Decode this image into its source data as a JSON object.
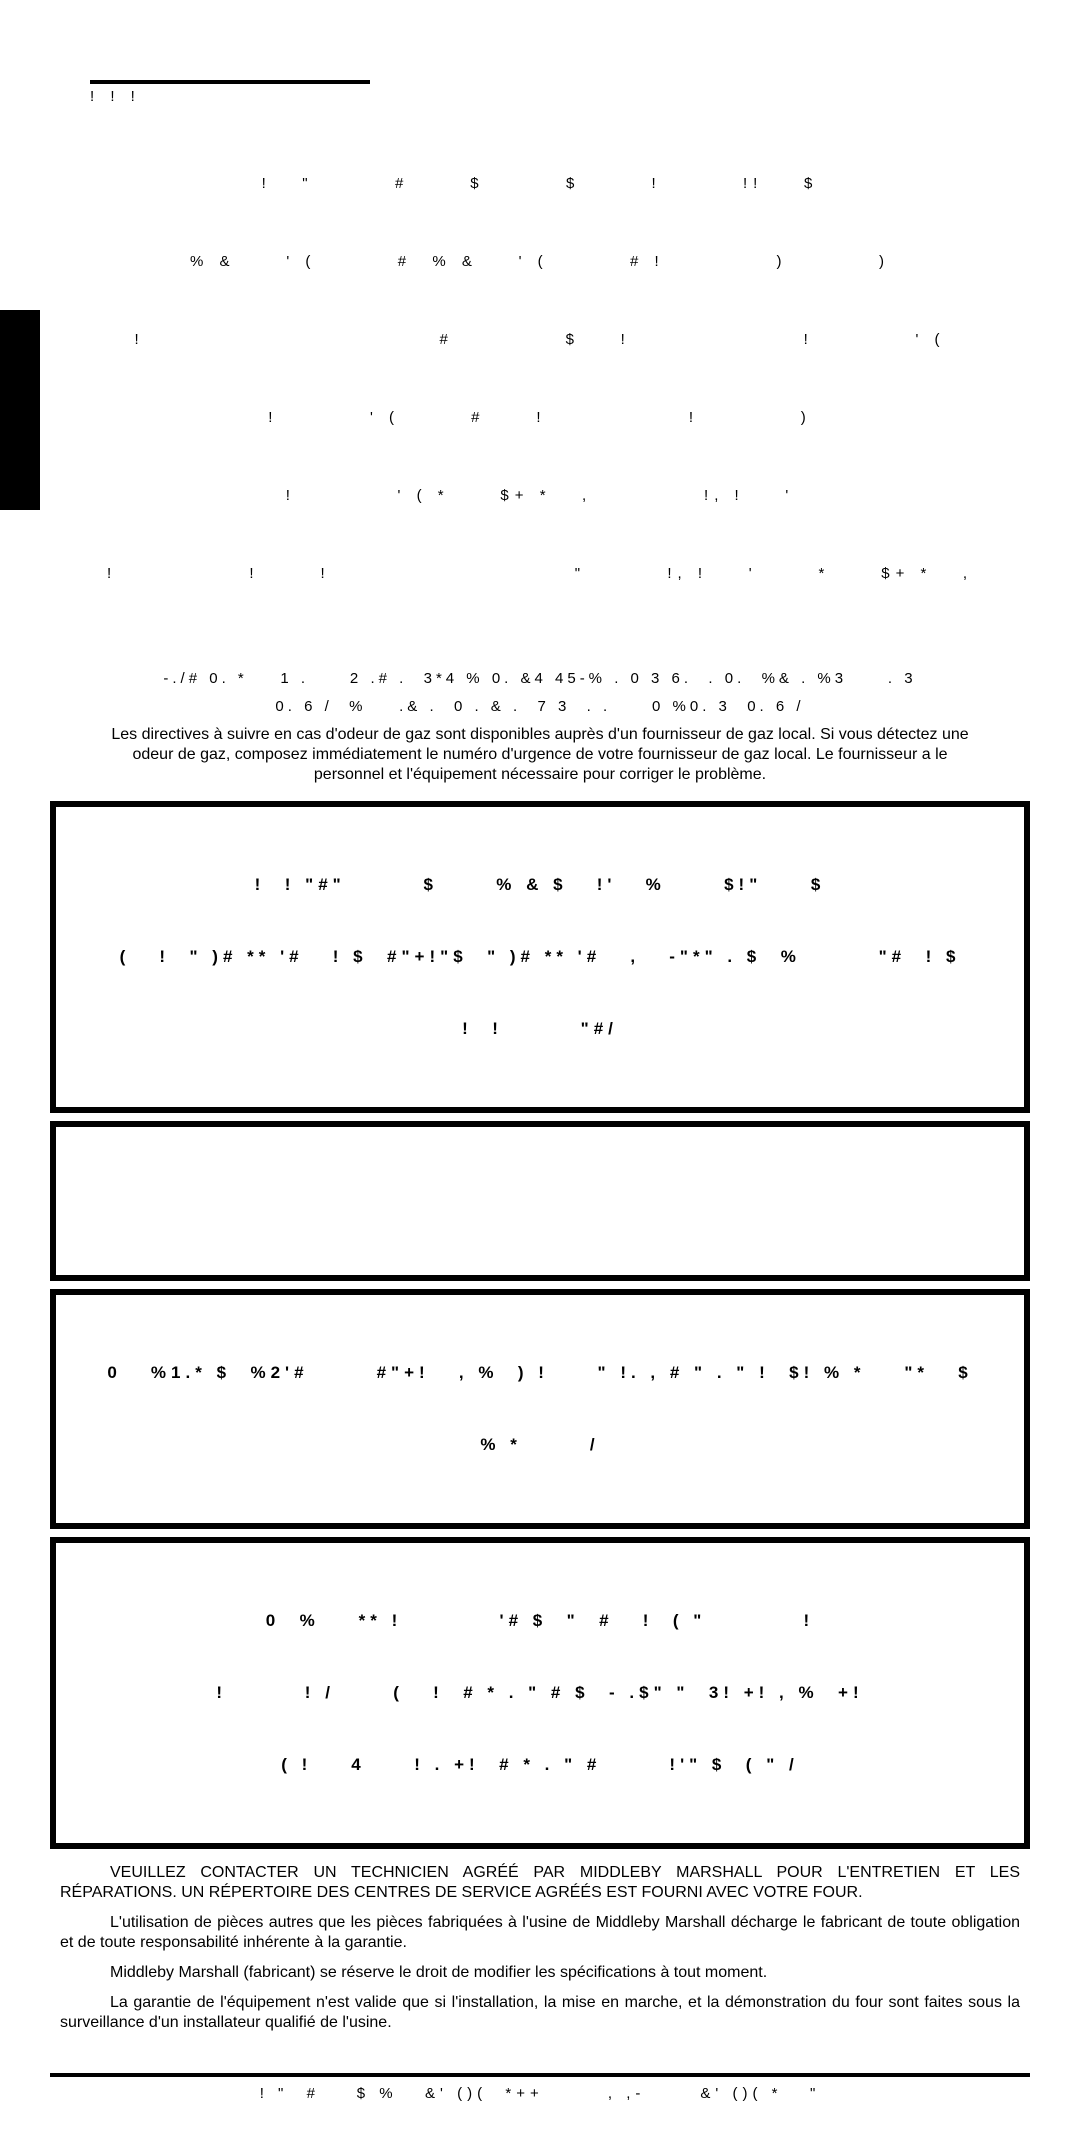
{
  "header_symbols": "!   !                          !",
  "spec_lines": [
    "!   \"        #      $        $       !        !!    $",
    "% &     ' (        #  % &    ' (        # !           )         )",
    "!                             #           $    !                 !          ' (",
    "!         ' (       #     !              !          )",
    "!          ' ( *     $+ *   ,           !, !    '",
    "!             !      !                        \"        !, !    '      *     $+ *   ,"
  ],
  "mid_line1": "-./# 0. *    1 .     2 .# .  3*4 % 0. &4 45-% . 0 3 6.  . 0.  %& . %3     . 3",
  "mid_line2": "0. 6 /  %    .& .  0 . & .  7 3  . .     0 %0. 3  0. 6 /",
  "french_gas": "Les directives à suivre en cas d'odeur de gaz sont disponibles auprès d'un fournisseur de gaz local. Si vous détectez une odeur de gaz, composez immédiatement le numéro d'urgence de votre fournisseur de gaz local. Le fournisseur a le personnel et l'équipement nécessaire pour corriger le problème.",
  "box1_line1": "!  ! \"#\"        $      % & $   !'   %      $!\"     $",
  "box1_line2": "(   !  \" )# ** '#   ! $  #\"+!\"$  \" )# ** '#   ,   -\"*\" . $  %        \"#  ! $",
  "box1_line3": "!  !        \"#/",
  "box2_content": "",
  "box3_line1": "0   %1.* $  %2'#       #\"+!   , %  ) !     \" !. , # \" . \" !  $! % *    \"*   $",
  "box3_line2": "% *       /",
  "box4_line1": "0  %    ** !          '# $  \"  #   !  ( \"          !",
  "box4_line2": "!        ! /      (   !  # * . \" # $  - .$\" \"  3! +! , %  +!",
  "box4_line3": "( !    4     ! . +!  # * . \" #       !'\" $  ( \" /",
  "body_french1": "VEUILLEZ CONTACTER UN TECHNICIEN AGRÉÉ PAR MIDDLEBY MARSHALL POUR L'ENTRETIEN ET LES RÉPARATIONS.  UN RÉPERTOIRE DES CENTRES DE SERVICE AGRÉÉS EST FOURNI AVEC VOTRE FOUR.",
  "body_french2": "L'utilisation de pièces autres que les pièces fabriquées à l'usine de Middleby Marshall décharge le fabricant de toute obligation et de toute responsabilité inhérente à la garantie.",
  "body_french3": "Middleby Marshall (fabricant) se réserve le droit de modifier les spécifications à tout moment.",
  "body_french4": "La garantie de l'équipement n'est valide que si l'installation, la mise en marche, et la démonstration du four sont faites sous la surveillance d'un installateur qualifié de l'usine.",
  "footer_text": "! \"  #    $ %   &' ()(  *++       , ,-      &' ()( *   \"",
  "colors": {
    "text": "#000000",
    "background": "#ffffff",
    "border": "#000000"
  }
}
